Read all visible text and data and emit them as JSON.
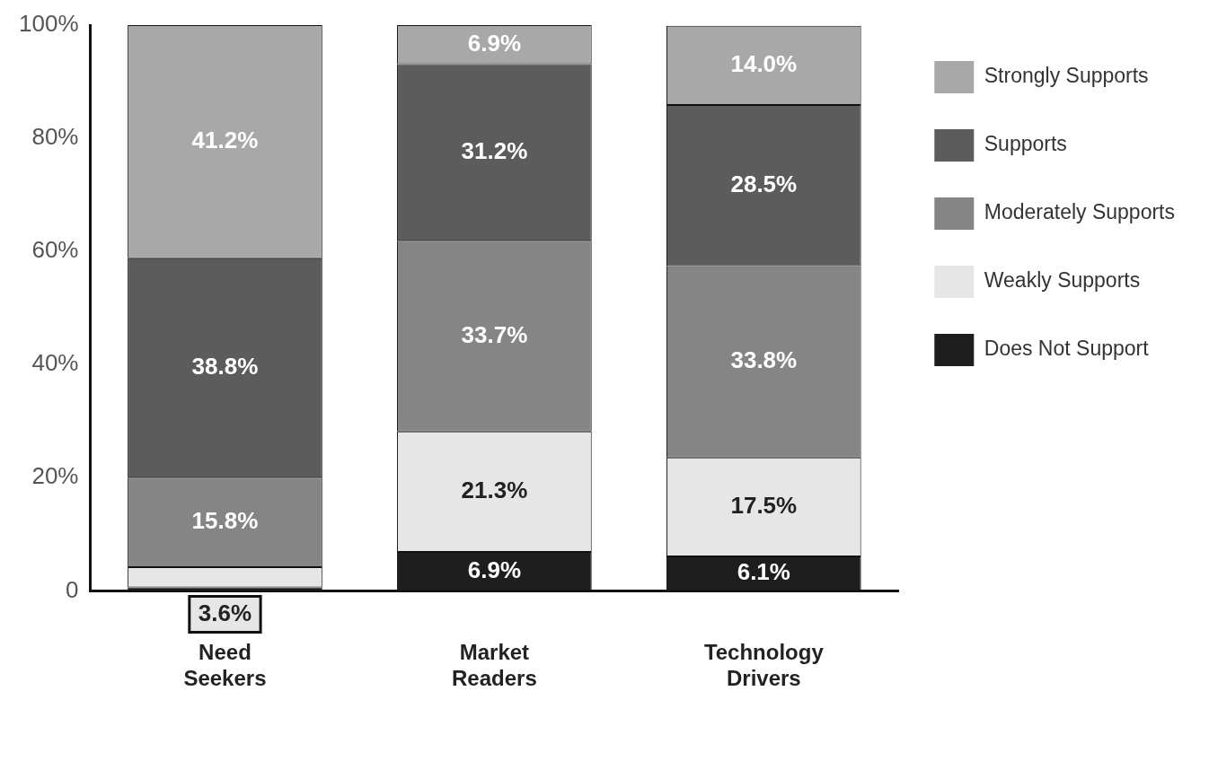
{
  "chart_data": {
    "type": "bar",
    "stacked": true,
    "categories": [
      "Need Seekers",
      "Market Readers",
      "Technology Drivers"
    ],
    "series": [
      {
        "name": "Does Not Support",
        "color": "#1e1e1e",
        "values": [
          0.6,
          6.9,
          6.1
        ],
        "value_labels": [
          null,
          "6.9%",
          "6.1%"
        ]
      },
      {
        "name": "Weakly Supports",
        "color": "#e6e6e6",
        "values": [
          3.6,
          21.3,
          17.5
        ],
        "value_labels": [
          "3.6%",
          "21.3%",
          "17.5%"
        ]
      },
      {
        "name": "Moderately Supports",
        "color": "#858585",
        "values": [
          15.8,
          33.7,
          33.8
        ],
        "value_labels": [
          "15.8%",
          "33.7%",
          "33.8%"
        ]
      },
      {
        "name": "Supports",
        "color": "#5c5c5c",
        "values": [
          38.8,
          31.2,
          28.5
        ],
        "value_labels": [
          "38.8%",
          "31.2%",
          "28.5%"
        ]
      },
      {
        "name": "Strongly Supports",
        "color": "#a8a8a8",
        "values": [
          41.2,
          6.9,
          14.0
        ],
        "value_labels": [
          "41.2%",
          "6.9%",
          "14.0%"
        ]
      }
    ],
    "ylim": [
      0,
      100
    ],
    "yticks": [
      0,
      {
        "value": 20,
        "label": "20%"
      },
      {
        "value": 40,
        "label": "40%"
      },
      {
        "value": 60,
        "label": "60%"
      },
      {
        "value": 80,
        "label": "80%"
      },
      {
        "value": 100,
        "label": "100%"
      }
    ],
    "grid": false,
    "legend": "right"
  }
}
